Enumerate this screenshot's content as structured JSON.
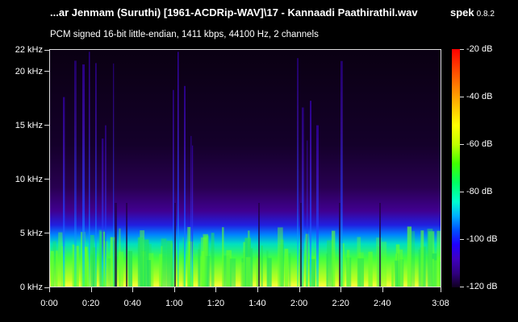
{
  "window": {
    "title": "...ar Jenmam (Suruthi) [1961-ACDRip-WAV]\\17 - Kannaadi Paathirathil.wav",
    "app_name": "spek",
    "app_version": "0.8.2",
    "subtitle": "PCM signed 16-bit little-endian, 1411 kbps, 44100 Hz, 2 channels"
  },
  "chart_data": {
    "type": "heatmap",
    "y_axis": {
      "unit": "kHz",
      "range": [
        0,
        22
      ],
      "ticks": [
        {
          "value": 0,
          "label": "0 kHz"
        },
        {
          "value": 5,
          "label": "5 kHz"
        },
        {
          "value": 10,
          "label": "10 kHz"
        },
        {
          "value": 15,
          "label": "15 kHz"
        },
        {
          "value": 20,
          "label": "20 kHz"
        },
        {
          "value": 22,
          "label": "22 kHz"
        }
      ]
    },
    "x_axis": {
      "unit": "seconds",
      "range": [
        0,
        188
      ],
      "ticks": [
        {
          "value": 0,
          "label": "0:00"
        },
        {
          "value": 20,
          "label": "0:20"
        },
        {
          "value": 40,
          "label": "0:40"
        },
        {
          "value": 60,
          "label": "1:00"
        },
        {
          "value": 80,
          "label": "1:20"
        },
        {
          "value": 100,
          "label": "1:40"
        },
        {
          "value": 120,
          "label": "2:00"
        },
        {
          "value": 140,
          "label": "2:20"
        },
        {
          "value": 160,
          "label": "2:40"
        },
        {
          "value": 188,
          "label": "3:08"
        }
      ]
    },
    "color_scale": {
      "unit": "dB",
      "range": [
        -120,
        -20
      ],
      "ticks": [
        {
          "value": -20,
          "label": "-20 dB"
        },
        {
          "value": -40,
          "label": "-40 dB"
        },
        {
          "value": -60,
          "label": "-60 dB"
        },
        {
          "value": -80,
          "label": "-80 dB"
        },
        {
          "value": -100,
          "label": "-100 dB"
        },
        {
          "value": -120,
          "label": "-120 dB"
        }
      ]
    }
  }
}
